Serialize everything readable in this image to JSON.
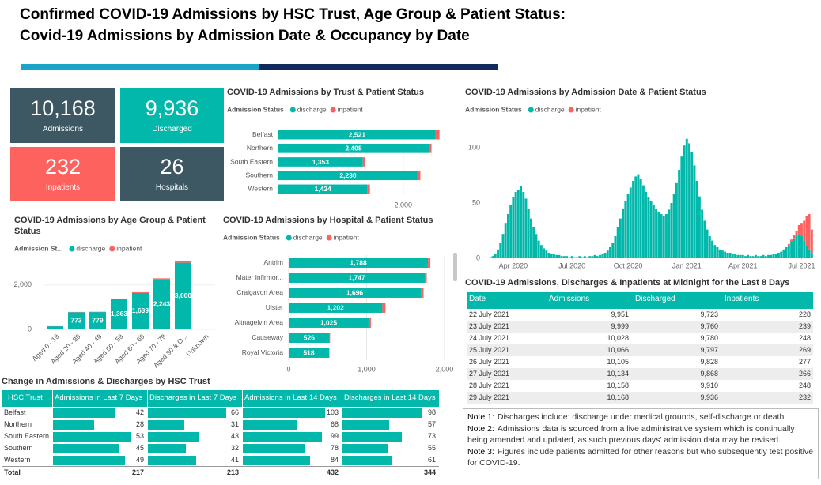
{
  "header": {
    "title_lines": [
      "Confirmed COVID-19 Admissions by HSC Trust, Age Group & Patient Status:",
      "Covid-19 Admissions by Admission Date & Occupancy by Date"
    ]
  },
  "kpis": [
    {
      "value": "10,168",
      "label": "Admissions",
      "color": "#3d5862"
    },
    {
      "value": "9,936",
      "label": "Discharged",
      "color": "#01b8aa"
    },
    {
      "value": "232",
      "label": "Inpatients",
      "color": "#fd625e"
    },
    {
      "value": "26",
      "label": "Hospitals",
      "color": "#3d5862"
    }
  ],
  "chart_data": [
    {
      "type": "hbar",
      "title": "COVID-19 Admissions by Trust & Patient Status",
      "legend_title": "Admission Status",
      "categories": [
        "Belfast",
        "Northern",
        "South Eastern",
        "Southern",
        "Western"
      ],
      "series": [
        {
          "name": "discharge",
          "color": "#01b8aa",
          "values": [
            2521,
            2408,
            1353,
            2230,
            1424
          ],
          "value_labels": [
            "2,521",
            "2,408",
            "1,353",
            "2,230",
            "1,424"
          ]
        },
        {
          "name": "inpatient",
          "color": "#fd625e",
          "values": [
            60,
            45,
            40,
            45,
            42
          ]
        }
      ],
      "xlim": [
        0,
        2700
      ],
      "xticks": [
        {
          "value": 2000,
          "label": "2,000"
        }
      ],
      "grid": true
    },
    {
      "type": "column",
      "title": "COVID-19 Admissions by Age Group & Patient Status",
      "legend_title": "Admission St...",
      "categories": [
        "Aged 0 - 19",
        "Aged 20 - 39",
        "Aged 40 - 49",
        "Aged 50 - 59",
        "Aged 60 - 69",
        "Aged 70 - 79",
        "Aged 80 & O...",
        "Unknown"
      ],
      "series": [
        {
          "name": "discharge",
          "color": "#01b8aa",
          "values": [
            139,
            773,
            779,
            1363,
            1639,
            2243,
            3000,
            0
          ],
          "value_labels": [
            null,
            "773",
            "779",
            "1,363",
            "1,639",
            "2,243",
            "3,000",
            null
          ]
        },
        {
          "name": "inpatient",
          "color": "#fd625e",
          "values": [
            7,
            12,
            13,
            25,
            35,
            55,
            85,
            0
          ]
        }
      ],
      "ylim": [
        0,
        3200
      ],
      "yticks": [
        0,
        {
          "value": 2000,
          "label": "2,000"
        }
      ],
      "grid": true
    },
    {
      "type": "hbar",
      "title": "COVID-19 Admissions by Hospital & Patient Status",
      "legend_title": "Admission Status",
      "categories": [
        "Antrim",
        "Mater Infirmor...",
        "Craigavon Area",
        "Ulster",
        "Altnagelvin Area",
        "Causeway",
        "Royal Victoria"
      ],
      "series": [
        {
          "name": "discharge",
          "color": "#01b8aa",
          "values": [
            1788,
            1747,
            1696,
            1202,
            1025,
            526,
            518
          ],
          "value_labels": [
            "1,788",
            "1,747",
            "1,696",
            "1,202",
            "1,025",
            "526",
            "518"
          ]
        },
        {
          "name": "inpatient",
          "color": "#fd625e",
          "values": [
            30,
            25,
            35,
            40,
            30,
            5,
            5
          ]
        }
      ],
      "xlim": [
        0,
        2000
      ],
      "xticks": [
        0,
        {
          "value": 1000,
          "label": "1,000"
        },
        {
          "value": 2000,
          "label": "2,000"
        }
      ],
      "grid": true
    },
    {
      "type": "timebar",
      "title": "COVID-19 Admissions by Admission Date & Patient Status",
      "legend_title": "Admission Status",
      "series": [
        {
          "name": "discharge",
          "color": "#01b8aa",
          "values": [
            0,
            1,
            2,
            4,
            8,
            14,
            22,
            32,
            40,
            48,
            55,
            60,
            62,
            65,
            60,
            54,
            45,
            36,
            28,
            22,
            16,
            12,
            9,
            7,
            5,
            4,
            4,
            3,
            3,
            2,
            2,
            2,
            1,
            2,
            1,
            1,
            2,
            1,
            2,
            1,
            2,
            2,
            3,
            2,
            3,
            4,
            5,
            7,
            10,
            14,
            20,
            28,
            36,
            45,
            52,
            58,
            64,
            70,
            74,
            76,
            72,
            66,
            60,
            55,
            52,
            48,
            45,
            42,
            40,
            38,
            40,
            44,
            50,
            58,
            68,
            80,
            92,
            102,
            108,
            104,
            96,
            84,
            70,
            56,
            44,
            34,
            26,
            20,
            16,
            12,
            10,
            8,
            7,
            6,
            5,
            5,
            4,
            4,
            3,
            3,
            3,
            2,
            3,
            2,
            2,
            3,
            2,
            2,
            3,
            2,
            3,
            3,
            4,
            4,
            5,
            6,
            8,
            10,
            12,
            15,
            18,
            20,
            22,
            20,
            16,
            12,
            8,
            4
          ]
        },
        {
          "name": "inpatient",
          "color": "#fd625e",
          "values": [
            0,
            0,
            0,
            0,
            0,
            0,
            0,
            0,
            0,
            0,
            0,
            0,
            0,
            0,
            0,
            0,
            0,
            0,
            0,
            0,
            0,
            0,
            0,
            0,
            0,
            0,
            0,
            0,
            0,
            0,
            0,
            0,
            0,
            0,
            0,
            0,
            0,
            0,
            0,
            0,
            0,
            0,
            0,
            0,
            0,
            0,
            0,
            0,
            0,
            0,
            0,
            0,
            0,
            0,
            0,
            0,
            0,
            0,
            0,
            0,
            0,
            0,
            0,
            0,
            0,
            0,
            0,
            0,
            0,
            0,
            0,
            0,
            0,
            0,
            0,
            0,
            0,
            0,
            0,
            0,
            0,
            0,
            0,
            0,
            0,
            0,
            0,
            0,
            0,
            0,
            0,
            0,
            0,
            0,
            0,
            0,
            0,
            0,
            0,
            0,
            0,
            0,
            0,
            0,
            0,
            0,
            0,
            0,
            0,
            0,
            0,
            0,
            0,
            0,
            0,
            0,
            0,
            0,
            1,
            2,
            3,
            5,
            8,
            12,
            18,
            26,
            32,
            22
          ]
        }
      ],
      "xlim": [
        -0.5,
        127.5
      ],
      "xticks": [
        {
          "value": 10,
          "label": "Apr 2020"
        },
        {
          "value": 33,
          "label": "Jul 2020"
        },
        {
          "value": 55,
          "label": "Oct 2020"
        },
        {
          "value": 78,
          "label": "Jan 2021"
        },
        {
          "value": 100,
          "label": "Apr 2021"
        },
        {
          "value": 123,
          "label": "Jul 2021"
        }
      ],
      "ylim": [
        0,
        115
      ],
      "yticks": [
        0,
        50,
        100
      ],
      "grid": false
    }
  ],
  "occupancy_table": {
    "title": "COVID-19 Admissions, Discharges & Inpatients at Midnight for the Last 8 Days",
    "columns": [
      "Date",
      "Admissions",
      "Discharged",
      "Inpatients"
    ],
    "rows": [
      [
        "22 July 2021",
        "9,951",
        "9,723",
        "228"
      ],
      [
        "23 July 2021",
        "9,999",
        "9,760",
        "239"
      ],
      [
        "24 July 2021",
        "10,028",
        "9,780",
        "248"
      ],
      [
        "25 July 2021",
        "10,066",
        "9,797",
        "269"
      ],
      [
        "26 July 2021",
        "10,105",
        "9,828",
        "277"
      ],
      [
        "27 July 2021",
        "10,134",
        "9,868",
        "266"
      ],
      [
        "28 July 2021",
        "10,158",
        "9,910",
        "248"
      ],
      [
        "29 July 2021",
        "10,168",
        "9,936",
        "232"
      ]
    ]
  },
  "trust_table": {
    "title": "Change in Admissions & Discharges by HSC Trust",
    "columns": [
      "HSC Trust",
      "Admissions in Last 7 Days",
      "Discharges in Last 7 Days",
      "Admissions in Last 14 Days",
      "Discharges in Last 14 Days"
    ],
    "rows": [
      [
        "Belfast",
        42,
        66,
        103,
        98
      ],
      [
        "Northern",
        28,
        31,
        68,
        57
      ],
      [
        "South Eastern",
        53,
        43,
        99,
        73
      ],
      [
        "Southern",
        45,
        32,
        78,
        55
      ],
      [
        "Western",
        49,
        41,
        84,
        61
      ]
    ],
    "total": [
      "Total",
      217,
      213,
      432,
      344
    ]
  },
  "notes": [
    {
      "label": "Note 1:",
      "text": "Discharges include: discharge under medical grounds, self-discharge or death."
    },
    {
      "label": "Note 2:",
      "text": "Admissions data is sourced from a live administrative system which is continually being amended and updated, as such previous days' admission data may be revised."
    },
    {
      "label": "Note 3:",
      "text": "Figures include patients admitted for other reasons but who subsequently test positive for COVID-19."
    }
  ]
}
